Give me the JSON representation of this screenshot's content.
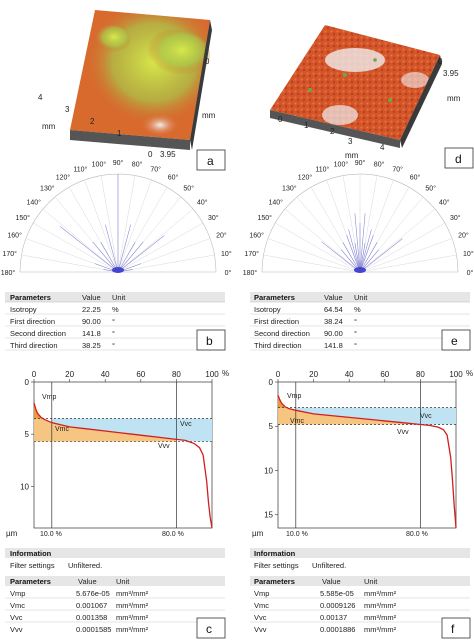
{
  "panels": {
    "a": {
      "label": "a",
      "axis_unit": "mm",
      "x_ticks": [
        "0",
        "1",
        "2",
        "3",
        "4"
      ],
      "y_ticks": [
        "0",
        "3.95"
      ]
    },
    "d": {
      "label": "d",
      "axis_unit": "mm",
      "x_ticks": [
        "0",
        "1",
        "2",
        "3",
        "4"
      ],
      "y_ticks": [
        "0",
        "3.95"
      ]
    }
  },
  "polar": {
    "angles": [
      "0°",
      "10°",
      "20°",
      "30°",
      "40°",
      "50°",
      "60°",
      "70°",
      "80°",
      "90°",
      "100°",
      "110°",
      "120°",
      "130°",
      "140°",
      "150°",
      "160°",
      "170°",
      "180°"
    ]
  },
  "table_b": {
    "label": "b",
    "headers": [
      "Parameters",
      "Value",
      "Unit"
    ],
    "rows": [
      [
        "Isotropy",
        "22.25",
        "%"
      ],
      [
        "First direction",
        "90.00",
        "°"
      ],
      [
        "Second direction",
        "141.8",
        "°"
      ],
      [
        "Third direction",
        "38.25",
        "°"
      ]
    ]
  },
  "table_e": {
    "label": "e",
    "headers": [
      "Parameters",
      "Value",
      "Unit"
    ],
    "rows": [
      [
        "Isotropy",
        "64.54",
        "%"
      ],
      [
        "First direction",
        "38.24",
        "°"
      ],
      [
        "Second direction",
        "90.00",
        "°"
      ],
      [
        "Third direction",
        "141.8",
        "°"
      ]
    ]
  },
  "chart_c": {
    "label": "c",
    "unit_label": "µm",
    "pct_label": "%",
    "marker_labels": [
      "10.0 %",
      "80.0 %"
    ],
    "annotations": [
      "Vmp",
      "Vmc",
      "Vvc",
      "Vvv"
    ],
    "info_title": "Information",
    "filter_label": "Filter settings",
    "filter_value": "Unfiltered.",
    "params_headers": [
      "Parameters",
      "Value",
      "Unit"
    ],
    "params_rows": [
      [
        "Vmp",
        "5.676e-05",
        "mm³/mm²"
      ],
      [
        "Vmc",
        "0.001067",
        "mm³/mm²"
      ],
      [
        "Vvc",
        "0.001358",
        "mm³/mm²"
      ],
      [
        "Vvv",
        "0.0001585",
        "mm³/mm²"
      ]
    ]
  },
  "chart_f": {
    "label": "f",
    "unit_label": "µm",
    "pct_label": "%",
    "marker_labels": [
      "10.0 %",
      "80.0 %"
    ],
    "annotations": [
      "Vmp",
      "Vmc",
      "Vvc",
      "Vvv"
    ],
    "info_title": "Information",
    "filter_label": "Filter settings",
    "filter_value": "Unfiltered.",
    "params_headers": [
      "Parameters",
      "Value",
      "Unit"
    ],
    "params_rows": [
      [
        "Vmp",
        "5.585e-05",
        "mm³/mm²"
      ],
      [
        "Vmc",
        "0.0009126",
        "mm³/mm²"
      ],
      [
        "Vvc",
        "0.00137",
        "mm³/mm²"
      ],
      [
        "Vvv",
        "0.0001886",
        "mm³/mm²"
      ]
    ]
  },
  "chart_data": [
    {
      "type": "line",
      "panel": "c",
      "title": "",
      "xlabel": "",
      "ylabel": "µm",
      "x_ticks": [
        "0",
        "20",
        "40",
        "60",
        "80",
        "100"
      ],
      "y_ticks": [
        "0",
        "5",
        "10"
      ],
      "xlim": [
        0,
        100
      ],
      "ylim": [
        0,
        14
      ],
      "series": [
        {
          "x": [
            0,
            1,
            2,
            4,
            6,
            10,
            20,
            30,
            40,
            50,
            60,
            70,
            80,
            85,
            90,
            93,
            95,
            97,
            98,
            99,
            100
          ],
          "values": [
            2.0,
            2.6,
            3.0,
            3.4,
            3.6,
            3.9,
            4.3,
            4.5,
            4.7,
            4.9,
            5.1,
            5.3,
            5.5,
            5.6,
            5.9,
            6.3,
            7.0,
            9.5,
            11.5,
            13.0,
            14.0
          ]
        }
      ],
      "reference_lines": {
        "x": [
          10,
          80
        ],
        "y_levels": [
          3.5,
          5.7
        ]
      }
    },
    {
      "type": "line",
      "panel": "f",
      "title": "",
      "xlabel": "",
      "ylabel": "µm",
      "x_ticks": [
        "0",
        "20",
        "40",
        "60",
        "80",
        "100"
      ],
      "y_ticks": [
        "0",
        "5",
        "10",
        "15"
      ],
      "xlim": [
        0,
        100
      ],
      "ylim": [
        0,
        16.5
      ],
      "series": [
        {
          "x": [
            0,
            1,
            2,
            4,
            6,
            10,
            20,
            30,
            40,
            50,
            60,
            70,
            80,
            85,
            90,
            93,
            95,
            97,
            98,
            99,
            100
          ],
          "values": [
            1.5,
            2.0,
            2.4,
            2.8,
            3.0,
            3.2,
            3.6,
            3.8,
            4.0,
            4.2,
            4.4,
            4.6,
            4.8,
            4.9,
            5.1,
            5.4,
            6.0,
            8.5,
            11.0,
            14.0,
            16.5
          ]
        }
      ],
      "reference_lines": {
        "x": [
          10,
          80
        ],
        "y_levels": [
          2.9,
          4.8
        ]
      }
    }
  ]
}
